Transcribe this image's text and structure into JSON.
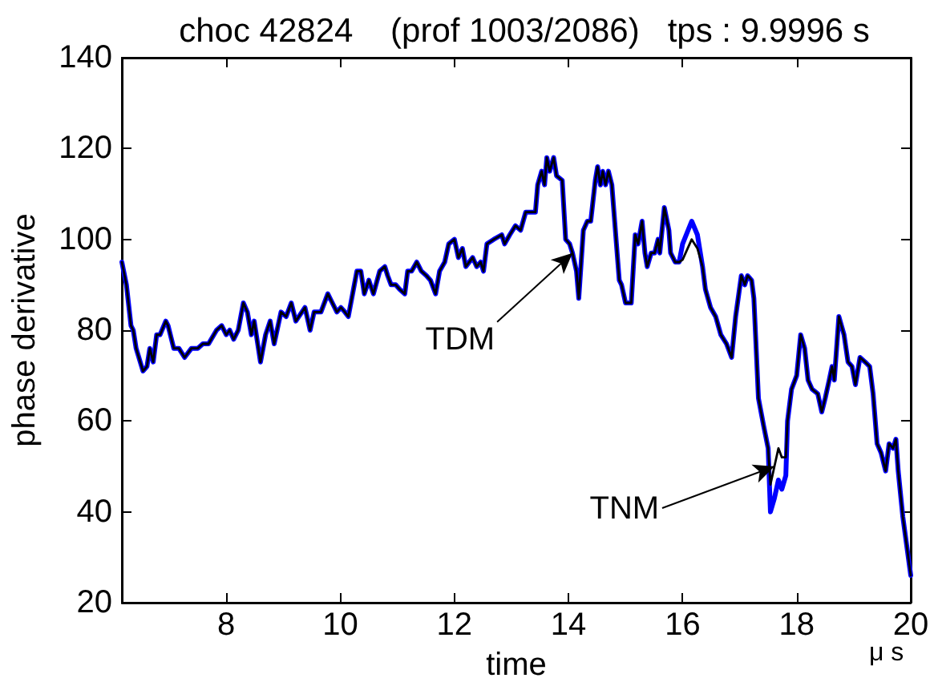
{
  "chart_data": {
    "type": "line",
    "title": "choc 42824    (prof 1003/2086)   tps : 9.9996 s",
    "xlabel": "time",
    "ylabel": "phase derivative",
    "annotations": [
      {
        "text": "TDM",
        "x": 14.07,
        "y": 97
      },
      {
        "text": "TNM",
        "x": 17.61,
        "y": 50
      },
      "μ s"
    ],
    "x": [
      6.17,
      6.25,
      6.33,
      6.37,
      6.42,
      6.54,
      6.61,
      6.66,
      6.72,
      6.78,
      6.84,
      6.94,
      6.98,
      7.08,
      7.17,
      7.27,
      7.39,
      7.5,
      7.59,
      7.69,
      7.83,
      7.92,
      8.0,
      8.06,
      8.13,
      8.21,
      8.3,
      8.37,
      8.44,
      8.49,
      8.6,
      8.69,
      8.77,
      8.84,
      8.96,
      9.05,
      9.14,
      9.22,
      9.38,
      9.47,
      9.54,
      9.66,
      9.78,
      9.86,
      9.94,
      10.01,
      10.08,
      10.14,
      10.29,
      10.36,
      10.42,
      10.5,
      10.58,
      10.69,
      10.78,
      10.83,
      10.89,
      10.97,
      11.04,
      11.13,
      11.18,
      11.25,
      11.34,
      11.42,
      11.51,
      11.58,
      11.67,
      11.74,
      11.83,
      11.9,
      12.0,
      12.07,
      12.14,
      12.2,
      12.32,
      12.39,
      12.46,
      12.51,
      12.57,
      12.69,
      12.83,
      12.88,
      12.97,
      13.07,
      13.16,
      13.25,
      13.35,
      13.42,
      13.46,
      13.53,
      13.58,
      13.62,
      13.67,
      13.74,
      13.79,
      13.89,
      13.95,
      14.02,
      14.07,
      14.14,
      14.18,
      14.26,
      14.33,
      14.39,
      14.47,
      14.51,
      14.56,
      14.6,
      14.65,
      14.7,
      14.76,
      14.84,
      14.89,
      14.93,
      15.0,
      15.1,
      15.17,
      15.22,
      15.29,
      15.34,
      15.38,
      15.45,
      15.51,
      15.57,
      15.6,
      15.68,
      15.76,
      15.79,
      15.87,
      15.94,
      16.0,
      16.16,
      16.26,
      16.35,
      16.4,
      16.49,
      16.58,
      16.67,
      16.77,
      16.86,
      16.93,
      17.03,
      17.09,
      17.14,
      17.21,
      17.25,
      17.33,
      17.42,
      17.5,
      17.54,
      17.61,
      17.68,
      17.74,
      17.81,
      17.84,
      17.91,
      18.0,
      18.07,
      18.14,
      18.2,
      18.27,
      18.37,
      18.44,
      18.5,
      18.57,
      18.62,
      18.66,
      18.74,
      18.83,
      18.9,
      18.97,
      19.03,
      19.11,
      19.2,
      19.28,
      19.34,
      19.41,
      19.48,
      19.56,
      19.62,
      19.69,
      19.74,
      19.78,
      19.86,
      20.0
    ],
    "series": [
      {
        "color": "#0000ff",
        "values": [
          95,
          90,
          81,
          80,
          76,
          71,
          72,
          76,
          73,
          79,
          79,
          82,
          81,
          76,
          76,
          74,
          76,
          76,
          77,
          77,
          80,
          81,
          79,
          80,
          78,
          80,
          86,
          84,
          79,
          82,
          73,
          79,
          82,
          77,
          84,
          83,
          86,
          82,
          85,
          80,
          84,
          84,
          88,
          86,
          84,
          85,
          84,
          83,
          93,
          93,
          88,
          91,
          88,
          93,
          94,
          92,
          90,
          90,
          89,
          88,
          93,
          93,
          95,
          93,
          92,
          91,
          88,
          93,
          95,
          99,
          100,
          96,
          98,
          94,
          96,
          94,
          95,
          93,
          99,
          100,
          101,
          99,
          101,
          103,
          102,
          106,
          106,
          106,
          112,
          115,
          112,
          118,
          115,
          118,
          114,
          113,
          100,
          99,
          97,
          93,
          87,
          102,
          104,
          104,
          113,
          116,
          112,
          115,
          112,
          115,
          112,
          99,
          91,
          90,
          86,
          86,
          101,
          99,
          104,
          97,
          94,
          97,
          97,
          100,
          97,
          107,
          102,
          97,
          95,
          95,
          99,
          104,
          101,
          94,
          89,
          85,
          83,
          79,
          77,
          74,
          83,
          92,
          90,
          92,
          91,
          87,
          65,
          59,
          54,
          40,
          43,
          47,
          45,
          48,
          60,
          67,
          70,
          79,
          76,
          69,
          67,
          66,
          62,
          65,
          69,
          72,
          69,
          83,
          79,
          73,
          72,
          68,
          74,
          73,
          72,
          66,
          55,
          53,
          49,
          55,
          54,
          56,
          49,
          39,
          26
        ]
      },
      {
        "color": "#000000",
        "values": [
          95,
          90,
          81,
          80,
          76,
          71,
          72,
          76,
          73,
          79,
          79,
          82,
          81,
          76,
          76,
          74,
          76,
          76,
          77,
          77,
          80,
          81,
          79,
          80,
          78,
          80,
          86,
          84,
          79,
          82,
          73,
          79,
          82,
          77,
          84,
          83,
          86,
          82,
          85,
          80,
          84,
          84,
          88,
          86,
          84,
          85,
          84,
          83,
          93,
          93,
          88,
          91,
          88,
          93,
          94,
          92,
          90,
          90,
          89,
          88,
          93,
          93,
          95,
          93,
          92,
          91,
          88,
          93,
          95,
          99,
          100,
          96,
          98,
          94,
          96,
          94,
          95,
          93,
          99,
          100,
          101,
          99,
          101,
          103,
          102,
          106,
          106,
          106,
          112,
          115,
          112,
          118,
          115,
          118,
          114,
          113,
          100,
          99,
          97,
          93,
          87,
          102,
          104,
          104,
          113,
          116,
          112,
          115,
          112,
          115,
          112,
          99,
          91,
          90,
          86,
          86,
          101,
          99,
          104,
          97,
          94,
          97,
          97,
          100,
          97,
          107,
          102,
          97,
          95,
          95,
          95.5,
          100,
          98,
          94,
          89,
          85,
          83,
          79,
          77,
          74,
          83,
          92,
          90,
          92,
          91,
          87,
          65,
          59,
          54,
          46,
          50,
          54,
          52,
          52,
          60,
          67,
          70,
          79,
          76,
          69,
          67,
          66,
          62,
          65,
          69,
          72,
          69,
          83,
          79,
          73,
          72,
          68,
          74,
          73,
          72,
          66,
          55,
          53,
          49,
          55,
          54,
          56,
          49,
          39,
          26
        ]
      }
    ],
    "xlim": [
      6.17,
      20
    ],
    "ylim": [
      20,
      140
    ],
    "xticks": [
      8,
      10,
      12,
      14,
      16,
      18,
      20
    ],
    "yticks": [
      20,
      40,
      60,
      80,
      100,
      120,
      140
    ],
    "grid": false
  }
}
